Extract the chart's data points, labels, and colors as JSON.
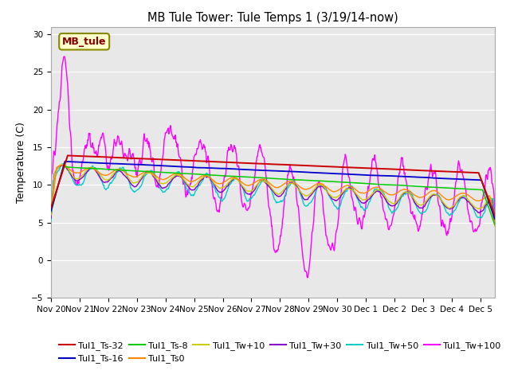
{
  "title": "MB Tule Tower: Tule Temps 1 (3/19/14-now)",
  "ylabel": "Temperature (C)",
  "annotation_text": "MB_tule",
  "ylim": [
    -5,
    31
  ],
  "yticks": [
    -5,
    0,
    5,
    10,
    15,
    20,
    25,
    30
  ],
  "x_tick_labels": [
    "Nov 20",
    "Nov 21",
    "Nov 22",
    "Nov 23",
    "Nov 24",
    "Nov 25",
    "Nov 26",
    "Nov 27",
    "Nov 28",
    "Nov 29",
    "Nov 30",
    "Dec 1",
    "Dec 2",
    "Dec 3",
    "Dec 4",
    "Dec 5"
  ],
  "series_colors": {
    "Tul1_Ts-32": "#cc0000",
    "Tul1_Ts-16": "#0000cc",
    "Tul1_Ts-8": "#00cc00",
    "Tul1_Ts0": "#ff8800",
    "Tul1_Tw+10": "#cccc00",
    "Tul1_Tw+30": "#8800cc",
    "Tul1_Tw+50": "#00cccc",
    "Tul1_Tw+100": "#ff00ff"
  },
  "plot_bg_color": "#e8e8e8",
  "fig_bg_color": "#ffffff",
  "annotation_bg": "#ffffcc",
  "annotation_border": "#888800",
  "grid_color": "#ffffff"
}
